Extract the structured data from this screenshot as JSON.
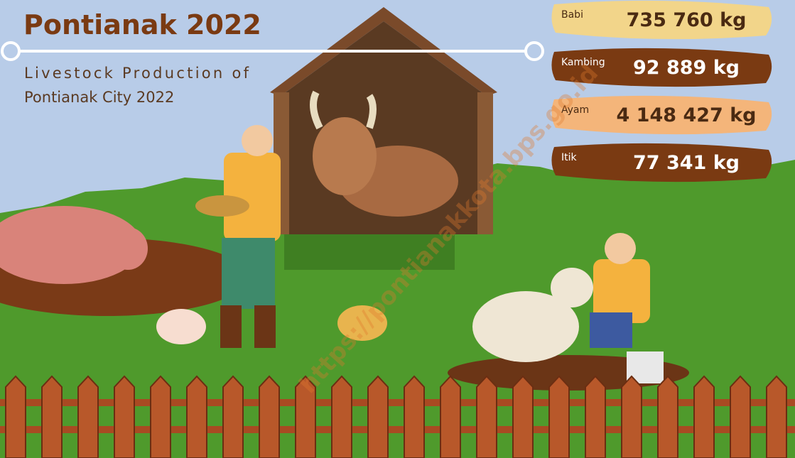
{
  "header": {
    "title": "Pontianak 2022",
    "subtitle_line1": "Livestock Production of",
    "subtitle_line2": "Pontianak City 2022"
  },
  "items": [
    {
      "label": "Babi",
      "value": "735 760 kg"
    },
    {
      "label": "Kambing",
      "value": "92 889 kg"
    },
    {
      "label": "Ayam",
      "value": "4 148 427 kg"
    },
    {
      "label": "Itik",
      "value": "77 341 kg"
    }
  ],
  "watermark": "https://pontianakkota.bps.go.id"
}
